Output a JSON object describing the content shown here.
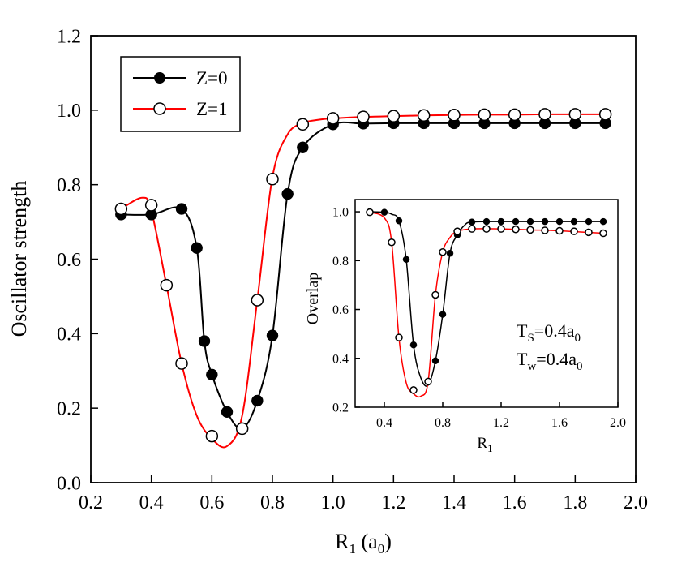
{
  "chart_data": [
    {
      "type": "line",
      "ylabel": "Oscillator strength",
      "xlabel": "R",
      "xlabel_sub": "1",
      "xlabel_unit_open": " (a",
      "xlabel_unit_sub": "0",
      "xlabel_unit_close": ")",
      "xlim": [
        0.2,
        2.0
      ],
      "ylim": [
        0.0,
        1.2
      ],
      "xticks": [
        "0.2",
        "0.4",
        "0.6",
        "0.8",
        "1.0",
        "1.2",
        "1.4",
        "1.6",
        "1.8",
        "2.0"
      ],
      "yticks": [
        "0.0",
        "0.2",
        "0.4",
        "0.6",
        "0.8",
        "1.0",
        "1.2"
      ],
      "legend_position": "top-left",
      "series": [
        {
          "name": "Z=0",
          "color": "#000000",
          "marker": "filled-circle",
          "x": [
            0.3,
            0.4,
            0.5,
            0.55,
            0.575,
            0.6,
            0.65,
            0.7,
            0.75,
            0.8,
            0.85,
            0.9,
            1.0,
            1.1,
            1.2,
            1.3,
            1.4,
            1.5,
            1.6,
            1.7,
            1.8,
            1.9
          ],
          "y": [
            0.72,
            0.72,
            0.735,
            0.63,
            0.38,
            0.29,
            0.19,
            0.145,
            0.22,
            0.395,
            0.775,
            0.9,
            0.962,
            0.964,
            0.965,
            0.965,
            0.965,
            0.965,
            0.965,
            0.965,
            0.965,
            0.965
          ]
        },
        {
          "name": "Z=1",
          "color": "#ff0000",
          "marker": "open-circle",
          "x": [
            0.3,
            0.4,
            0.45,
            0.5,
            0.6,
            0.7,
            0.75,
            0.8,
            0.9,
            1.0,
            1.1,
            1.2,
            1.3,
            1.4,
            1.5,
            1.6,
            1.7,
            1.8,
            1.9
          ],
          "y": [
            0.735,
            0.745,
            0.53,
            0.32,
            0.125,
            0.145,
            0.49,
            0.815,
            0.962,
            0.978,
            0.982,
            0.984,
            0.986,
            0.987,
            0.988,
            0.988,
            0.989,
            0.989,
            0.989
          ],
          "curve_x": [
            0.3,
            0.37,
            0.4,
            0.45,
            0.5,
            0.55,
            0.6,
            0.65,
            0.7,
            0.75,
            0.8,
            0.85,
            0.9,
            0.95,
            1.0,
            1.1,
            1.2,
            1.3,
            1.4,
            1.5,
            1.6,
            1.7,
            1.8,
            1.9
          ],
          "curve_y": [
            0.735,
            0.765,
            0.73,
            0.53,
            0.32,
            0.18,
            0.118,
            0.098,
            0.18,
            0.49,
            0.82,
            0.935,
            0.965,
            0.974,
            0.978,
            0.982,
            0.984,
            0.986,
            0.987,
            0.988,
            0.988,
            0.989,
            0.989,
            0.989
          ]
        }
      ]
    },
    {
      "type": "line",
      "ylabel": "Overlap",
      "xlabel": "R",
      "xlabel_sub": "1",
      "xlim": [
        0.2,
        2.0
      ],
      "ylim": [
        0.2,
        1.05
      ],
      "xticks": [
        "0.4",
        "0.8",
        "1.2",
        "1.6",
        "2.0"
      ],
      "yticks": [
        "0.2",
        "0.4",
        "0.6",
        "0.8",
        "1.0"
      ],
      "annotations": [
        {
          "main": "T",
          "sub": "S",
          "rest": "=0.4a",
          "sub2": "0"
        },
        {
          "main": "T",
          "sub": "w",
          "rest": "=0.4a",
          "sub2": "0"
        }
      ],
      "series": [
        {
          "name": "Z=0",
          "color": "#000000",
          "marker": "filled-circle",
          "x": [
            0.3,
            0.4,
            0.5,
            0.55,
            0.6,
            0.7,
            0.75,
            0.8,
            0.85,
            0.9,
            1.0,
            1.1,
            1.2,
            1.3,
            1.4,
            1.5,
            1.6,
            1.7,
            1.8,
            1.9
          ],
          "y": [
            1.0,
            0.998,
            0.963,
            0.805,
            0.455,
            0.305,
            0.39,
            0.58,
            0.83,
            0.905,
            0.958,
            0.96,
            0.96,
            0.96,
            0.96,
            0.96,
            0.96,
            0.96,
            0.96,
            0.96
          ],
          "curve_x": [
            0.3,
            0.4,
            0.45,
            0.5,
            0.55,
            0.6,
            0.65,
            0.7,
            0.75,
            0.8,
            0.85,
            0.9,
            0.95,
            1.0,
            1.2,
            1.4,
            1.6,
            1.9
          ],
          "curve_y": [
            1.0,
            0.998,
            0.99,
            0.963,
            0.805,
            0.455,
            0.32,
            0.29,
            0.39,
            0.58,
            0.83,
            0.905,
            0.945,
            0.958,
            0.96,
            0.96,
            0.96,
            0.96
          ]
        },
        {
          "name": "Z=1",
          "color": "#ff0000",
          "marker": "open-circle",
          "x": [
            0.3,
            0.45,
            0.5,
            0.6,
            0.7,
            0.75,
            0.8,
            0.9,
            1.0,
            1.1,
            1.2,
            1.3,
            1.4,
            1.5,
            1.6,
            1.7,
            1.8,
            1.9
          ],
          "y": [
            0.998,
            0.875,
            0.485,
            0.27,
            0.305,
            0.66,
            0.835,
            0.92,
            0.93,
            0.93,
            0.93,
            0.928,
            0.926,
            0.924,
            0.922,
            0.92,
            0.916,
            0.912
          ],
          "curve_x": [
            0.3,
            0.4,
            0.45,
            0.5,
            0.55,
            0.6,
            0.65,
            0.7,
            0.75,
            0.8,
            0.85,
            0.9,
            1.0,
            1.2,
            1.4,
            1.6,
            1.9
          ],
          "curve_y": [
            0.998,
            0.975,
            0.875,
            0.485,
            0.3,
            0.255,
            0.245,
            0.305,
            0.66,
            0.835,
            0.895,
            0.92,
            0.93,
            0.93,
            0.926,
            0.922,
            0.912
          ]
        }
      ]
    }
  ]
}
